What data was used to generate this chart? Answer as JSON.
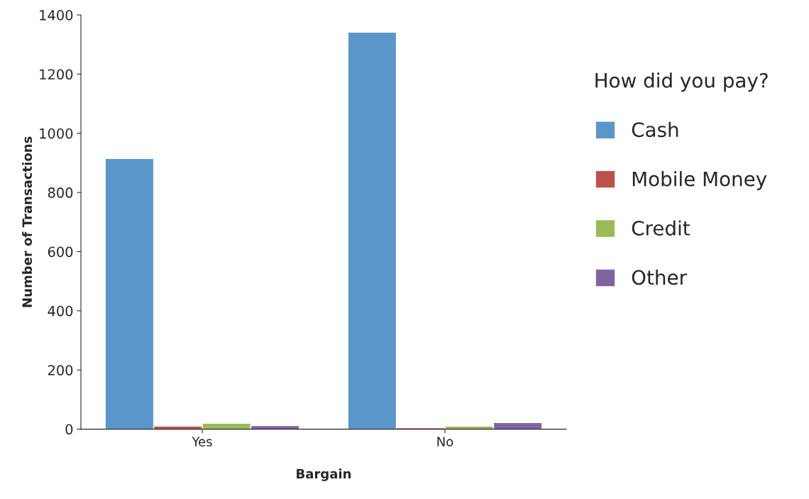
{
  "chart_data": {
    "type": "bar",
    "xlabel": "Bargain",
    "ylabel": "Number of Transactions",
    "legend_title": "How did you pay?",
    "categories": [
      "Yes",
      "No"
    ],
    "series": [
      {
        "name": "Cash",
        "color": "#5b96cb",
        "values": [
          915,
          1342
        ]
      },
      {
        "name": "Mobile Money",
        "color": "#c0504d",
        "values": [
          10,
          5
        ]
      },
      {
        "name": "Credit",
        "color": "#9bbb59",
        "values": [
          20,
          10
        ]
      },
      {
        "name": "Other",
        "color": "#8064a2",
        "values": [
          12,
          22
        ]
      }
    ],
    "ylim": [
      0,
      1400
    ],
    "yticks": [
      0,
      200,
      400,
      600,
      800,
      1000,
      1200,
      1400
    ],
    "grid": false,
    "legend": "right"
  }
}
